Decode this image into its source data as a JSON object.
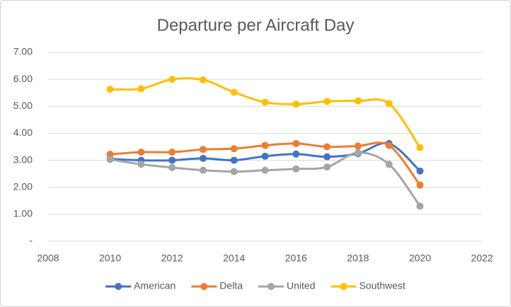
{
  "chart_data": {
    "type": "line",
    "title": "Departure per Aircraft Day",
    "x": [
      2010,
      2011,
      2012,
      2013,
      2014,
      2015,
      2016,
      2017,
      2018,
      2019,
      2020
    ],
    "series": [
      {
        "name": "American",
        "color": "#4472c4",
        "values": [
          3.05,
          3.0,
          3.0,
          3.07,
          3.0,
          3.15,
          3.23,
          3.13,
          3.25,
          3.62,
          2.6
        ]
      },
      {
        "name": "Delta",
        "color": "#ed7d31",
        "values": [
          3.22,
          3.3,
          3.3,
          3.4,
          3.43,
          3.55,
          3.62,
          3.5,
          3.53,
          3.55,
          2.08
        ]
      },
      {
        "name": "United",
        "color": "#a5a5a5",
        "values": [
          3.03,
          2.85,
          2.73,
          2.63,
          2.58,
          2.63,
          2.68,
          2.75,
          3.28,
          2.85,
          1.3
        ]
      },
      {
        "name": "Southwest",
        "color": "#ffc000",
        "values": [
          5.63,
          5.65,
          6.0,
          5.98,
          5.52,
          5.15,
          5.08,
          5.18,
          5.2,
          5.1,
          3.47
        ]
      }
    ],
    "xlim": [
      2008,
      2022
    ],
    "xticks": [
      2008,
      2010,
      2012,
      2014,
      2016,
      2018,
      2020,
      2022
    ],
    "ylim": [
      0,
      7
    ],
    "yticks": [
      {
        "value": 0,
        "label": "-"
      },
      {
        "value": 1,
        "label": "1.00"
      },
      {
        "value": 2,
        "label": "2.00"
      },
      {
        "value": 3,
        "label": "3.00"
      },
      {
        "value": 4,
        "label": "4.00"
      },
      {
        "value": 5,
        "label": "5.00"
      },
      {
        "value": 6,
        "label": "6.00"
      },
      {
        "value": 7,
        "label": "7.00"
      }
    ],
    "grid": true,
    "legend": "bottom",
    "smooth": true
  }
}
